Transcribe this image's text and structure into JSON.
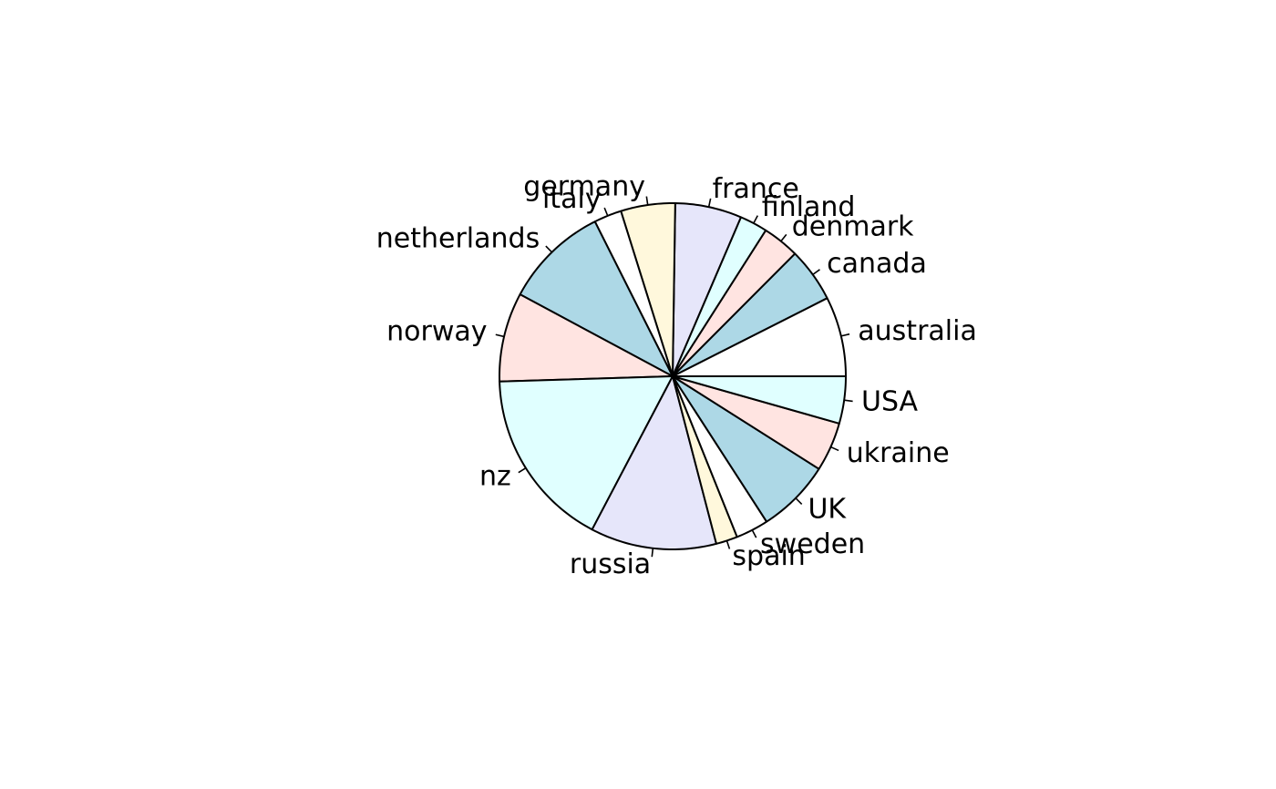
{
  "chart_data": {
    "type": "pie",
    "title": "",
    "start_angle_deg": 0,
    "direction": "counterclockwise",
    "slices": [
      {
        "label": "australia",
        "value": 7.8,
        "color": "#FFFFFF"
      },
      {
        "label": "canada",
        "value": 5.3,
        "color": "#ADD8E6"
      },
      {
        "label": "denmark",
        "value": 3.6,
        "color": "#FFE4E1"
      },
      {
        "label": "finland",
        "value": 2.7,
        "color": "#E0FFFF"
      },
      {
        "label": "france",
        "value": 6.5,
        "color": "#E6E6FA"
      },
      {
        "label": "germany",
        "value": 5.3,
        "color": "#FFF8DC"
      },
      {
        "label": "italy",
        "value": 2.7,
        "color": "#FFFFFF"
      },
      {
        "label": "netherlands",
        "value": 10.2,
        "color": "#ADD8E6"
      },
      {
        "label": "norway",
        "value": 8.7,
        "color": "#FFE4E1"
      },
      {
        "label": "nz",
        "value": 17.6,
        "color": "#E0FFFF"
      },
      {
        "label": "russia",
        "value": 12.3,
        "color": "#E6E6FA"
      },
      {
        "label": "spain",
        "value": 2.1,
        "color": "#FFF8DC"
      },
      {
        "label": "sweden",
        "value": 3.2,
        "color": "#FFFFFF"
      },
      {
        "label": "UK",
        "value": 7.2,
        "color": "#ADD8E6"
      },
      {
        "label": "ukraine",
        "value": 4.8,
        "color": "#FFE4E1"
      },
      {
        "label": "USA",
        "value": 4.6,
        "color": "#E0FFFF"
      }
    ]
  }
}
